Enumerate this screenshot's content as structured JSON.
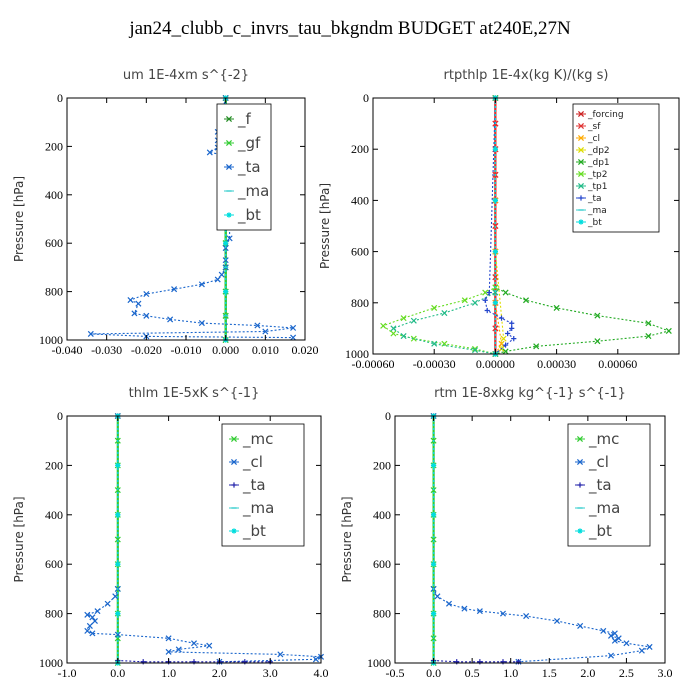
{
  "figure": {
    "title": "jan24_clubb_c_invrs_tau_bkgndm  BUDGET at240E,27N"
  },
  "chart_data": [
    {
      "type": "line",
      "title": "um  1E-4xm s^{-2}",
      "ylabel": "Pressure [hPa]",
      "xlim": [
        -0.04,
        0.02
      ],
      "ylim": [
        1000,
        0
      ],
      "xticks": [
        -0.04,
        -0.03,
        -0.02,
        -0.01,
        0.0,
        0.01,
        0.02
      ],
      "xtick_labels": [
        "-0.040",
        "-0.030",
        "-0.020",
        "-0.010",
        "0.000",
        "0.010",
        "0.020"
      ],
      "yticks": [
        0,
        200,
        400,
        600,
        800,
        1000
      ],
      "ytick_labels": [
        "0",
        "200",
        "400",
        "600",
        "800",
        "1000"
      ],
      "legend": {
        "placement": "top-right",
        "size": "big",
        "entries": [
          "_f",
          "_gf",
          "_ta",
          "_ma",
          "_bt"
        ]
      },
      "series": [
        {
          "name": "_f",
          "color": "#228B22",
          "marker": "x",
          "x": [
            0.0,
            0.0,
            0.0,
            0.0,
            0.0,
            0.0,
            0.0,
            0.0,
            0.0,
            0.0,
            0.0
          ],
          "y": [
            0,
            100,
            200,
            300,
            400,
            500,
            600,
            700,
            800,
            900,
            1000
          ]
        },
        {
          "name": "_gf",
          "color": "#33cc33",
          "marker": "x",
          "x": [
            0.0,
            0.0,
            0.0,
            0.0,
            0.0,
            0.0,
            0.0,
            0.0,
            0.0,
            0.0,
            0.0
          ],
          "y": [
            0,
            100,
            200,
            300,
            400,
            500,
            600,
            700,
            800,
            900,
            1000
          ]
        },
        {
          "name": "_ta",
          "color": "#1a66cc",
          "marker": "x",
          "x": [
            0.0,
            -0.001,
            -0.001,
            -0.002,
            -0.002,
            -0.001,
            -0.002,
            -0.004,
            0.001,
            0.002,
            -0.001,
            0.001,
            0.0,
            0.001,
            0.0,
            0.0,
            0.001,
            0.001,
            0.0,
            0.0,
            0.0,
            -0.001,
            -0.002,
            -0.006,
            -0.013,
            -0.02,
            -0.024,
            -0.022,
            -0.023,
            -0.02,
            -0.014,
            -0.006,
            0.008,
            0.017,
            0.01,
            -0.034,
            -0.02,
            0.017
          ],
          "y": [
            0,
            60,
            90,
            140,
            175,
            190,
            205,
            225,
            240,
            280,
            300,
            320,
            360,
            400,
            430,
            470,
            520,
            580,
            620,
            670,
            700,
            730,
            750,
            770,
            790,
            810,
            835,
            850,
            890,
            900,
            915,
            930,
            940,
            950,
            965,
            975,
            985,
            990
          ]
        },
        {
          "name": "_ma",
          "color": "#33cccc",
          "marker": "dash",
          "x": [
            0.0,
            0.0,
            0.0,
            0.0,
            0.0,
            0.0,
            0.0,
            0.0,
            0.0,
            0.0,
            0.0
          ],
          "y": [
            0,
            100,
            200,
            300,
            400,
            500,
            600,
            700,
            800,
            900,
            1000
          ]
        },
        {
          "name": "_bt",
          "color": "#00dddd",
          "marker": "star",
          "x": [
            0.0,
            0.0,
            0.0,
            0.0,
            0.0,
            0.0
          ],
          "y": [
            0,
            200,
            400,
            600,
            800,
            1000
          ]
        }
      ]
    },
    {
      "type": "line",
      "title": "rtpthlp  1E-4x(kg K)/(kg s)",
      "ylabel": "Pressure [hPa]",
      "xlim": [
        -0.0006,
        0.0009
      ],
      "ylim": [
        1000,
        0
      ],
      "xticks": [
        -0.0006,
        -0.0003,
        0.0,
        0.0003,
        0.0006
      ],
      "xtick_labels": [
        "-0.00060",
        "-0.00030",
        "0.00000",
        "0.00030",
        "0.00060"
      ],
      "yticks": [
        0,
        200,
        400,
        600,
        800,
        1000
      ],
      "ytick_labels": [
        "0",
        "200",
        "400",
        "600",
        "800",
        "1000"
      ],
      "legend": {
        "placement": "top-right",
        "size": "small",
        "entries": [
          "_forcing",
          "_sf",
          "_cl",
          "_dp2",
          "_dp1",
          "_tp2",
          "_tp1",
          "_ta",
          "_ma",
          "_bt"
        ]
      },
      "series": [
        {
          "name": "_forcing",
          "color": "#cc2222",
          "marker": "x",
          "x": [
            0.0,
            0.0,
            0.0,
            0.0,
            0.0,
            0.0,
            0.0,
            0.0,
            0.0,
            0.0,
            0.0
          ],
          "y": [
            0,
            100,
            200,
            300,
            400,
            500,
            600,
            700,
            800,
            900,
            1000
          ]
        },
        {
          "name": "_sf",
          "color": "#e03333",
          "marker": "x",
          "x": [
            0.0,
            0.0,
            0.0,
            0.0,
            0.0,
            0.0,
            0.0,
            0.0,
            0.0,
            0.0,
            0.0
          ],
          "y": [
            0,
            100,
            200,
            300,
            400,
            500,
            600,
            700,
            800,
            900,
            1000
          ]
        },
        {
          "name": "_cl",
          "color": "#ffaa00",
          "marker": "x",
          "x": [
            0.0,
            0.0,
            0.0,
            3e-05,
            0.0
          ],
          "y": [
            0,
            400,
            800,
            960,
            1000
          ]
        },
        {
          "name": "_dp2",
          "color": "#dddd00",
          "marker": "x",
          "x": [
            0.0,
            0.0,
            4e-05,
            3e-05,
            0.0
          ],
          "y": [
            0,
            600,
            940,
            980,
            1000
          ]
        },
        {
          "name": "_dp1",
          "color": "#22aa22",
          "marker": "x",
          "x": [
            0.0,
            0.0,
            5e-05,
            0.00015,
            0.0003,
            0.0005,
            0.00075,
            0.00085,
            0.00075,
            0.0005,
            0.0002,
            5e-05,
            0.0
          ],
          "y": [
            0,
            740,
            760,
            790,
            820,
            850,
            880,
            910,
            930,
            950,
            970,
            990,
            1000
          ]
        },
        {
          "name": "_tp2",
          "color": "#66dd22",
          "marker": "x",
          "x": [
            0.0,
            0.0,
            -5e-05,
            -0.00015,
            -0.0003,
            -0.00045,
            -0.00055,
            -0.0005,
            -0.0004,
            -0.00025,
            -0.0001,
            0.0
          ],
          "y": [
            0,
            740,
            760,
            790,
            820,
            860,
            890,
            920,
            940,
            960,
            980,
            1000
          ]
        },
        {
          "name": "_tp1",
          "color": "#22bb88",
          "marker": "x",
          "x": [
            0.0,
            0.0,
            -0.0001,
            -0.00025,
            -0.0004,
            -0.0005,
            -0.00045,
            -0.0003,
            -0.0001,
            0.0
          ],
          "y": [
            0,
            760,
            800,
            840,
            870,
            900,
            930,
            960,
            985,
            1000
          ]
        },
        {
          "name": "_ta",
          "color": "#2244cc",
          "marker": "plus",
          "x": [
            0.0,
            -3e-05,
            -5e-05,
            -4e-05,
            3e-05,
            8e-05,
            8e-05,
            6e-05,
            9e-05,
            5e-05,
            0.0
          ],
          "y": [
            0,
            760,
            790,
            830,
            860,
            880,
            900,
            920,
            940,
            965,
            1000
          ]
        },
        {
          "name": "_ma",
          "color": "#33cccc",
          "marker": "dash",
          "x": [
            0.0,
            0.0,
            0.0,
            0.0,
            0.0,
            0.0
          ],
          "y": [
            0,
            200,
            400,
            600,
            800,
            1000
          ]
        },
        {
          "name": "_bt",
          "color": "#00dddd",
          "marker": "star",
          "x": [
            0.0,
            0.0,
            0.0,
            0.0,
            0.0,
            0.0
          ],
          "y": [
            0,
            200,
            400,
            600,
            800,
            1000
          ]
        }
      ]
    },
    {
      "type": "line",
      "title": "thlm  1E-5xK s^{-1}",
      "ylabel": "Pressure [hPa]",
      "xlim": [
        -1.0,
        4.0
      ],
      "ylim": [
        1000,
        0
      ],
      "xticks": [
        -1.0,
        0.0,
        1.0,
        2.0,
        3.0,
        4.0
      ],
      "xtick_labels": [
        "-1.0",
        "0.0",
        "1.0",
        "2.0",
        "3.0",
        "4.0"
      ],
      "yticks": [
        0,
        200,
        400,
        600,
        800,
        1000
      ],
      "ytick_labels": [
        "0",
        "200",
        "400",
        "600",
        "800",
        "1000"
      ],
      "legend": {
        "placement": "top-right",
        "size": "big",
        "entries": [
          "_mc",
          "_cl",
          "_ta",
          "_ma",
          "_bt"
        ]
      },
      "series": [
        {
          "name": "_mc",
          "color": "#33cc33",
          "marker": "x",
          "x": [
            0.0,
            0.0,
            0.0,
            0.0,
            0.0,
            0.0,
            0.0,
            0.0,
            0.0,
            0.0,
            0.0
          ],
          "y": [
            0,
            100,
            200,
            300,
            400,
            500,
            600,
            700,
            800,
            900,
            1000
          ]
        },
        {
          "name": "_cl",
          "color": "#1a66cc",
          "marker": "x",
          "x": [
            0.0,
            0.0,
            -0.05,
            -0.2,
            -0.4,
            -0.6,
            -0.5,
            -0.45,
            -0.55,
            -0.6,
            -0.5,
            0.0,
            1.0,
            1.5,
            1.8,
            1.2,
            1.0,
            3.2,
            4.0,
            3.9,
            2.0
          ],
          "y": [
            0,
            700,
            730,
            760,
            790,
            805,
            815,
            830,
            850,
            870,
            880,
            885,
            900,
            920,
            930,
            945,
            955,
            965,
            975,
            985,
            995
          ]
        },
        {
          "name": "_ta",
          "color": "#2222aa",
          "marker": "plus",
          "x": [
            0.0,
            0.0,
            0.5,
            1.0,
            1.5,
            2.0,
            2.5,
            3.0
          ],
          "y": [
            0,
            990,
            995,
            995,
            995,
            995,
            995,
            995
          ]
        },
        {
          "name": "_ma",
          "color": "#33cccc",
          "marker": "dash",
          "x": [
            0.0,
            0.0,
            0.0,
            0.0,
            0.0,
            0.0
          ],
          "y": [
            0,
            200,
            400,
            600,
            800,
            1000
          ]
        },
        {
          "name": "_bt",
          "color": "#00dddd",
          "marker": "star",
          "x": [
            0.0,
            0.0,
            0.0,
            0.0,
            0.0,
            0.0
          ],
          "y": [
            0,
            200,
            400,
            600,
            800,
            1000
          ]
        }
      ]
    },
    {
      "type": "line",
      "title": "rtm  1E-8xkg kg^{-1} s^{-1}",
      "ylabel": "Pressure [hPa]",
      "xlim": [
        -0.5,
        3.0
      ],
      "ylim": [
        1000,
        0
      ],
      "xticks": [
        -0.5,
        0.0,
        0.5,
        1.0,
        1.5,
        2.0,
        2.5,
        3.0
      ],
      "xtick_labels": [
        "-0.5",
        "0.0",
        "0.5",
        "1.0",
        "1.5",
        "2.0",
        "2.5",
        "3.0"
      ],
      "yticks": [
        0,
        200,
        400,
        600,
        800,
        1000
      ],
      "ytick_labels": [
        "0",
        "200",
        "400",
        "600",
        "800",
        "1000"
      ],
      "legend": {
        "placement": "top-right",
        "size": "big",
        "entries": [
          "_mc",
          "_cl",
          "_ta",
          "_ma",
          "_bt"
        ]
      },
      "series": [
        {
          "name": "_mc",
          "color": "#33cc33",
          "marker": "x",
          "x": [
            0.0,
            0.0,
            0.0,
            0.0,
            0.0,
            0.0,
            0.0,
            0.0,
            0.0,
            0.0,
            0.0
          ],
          "y": [
            0,
            100,
            200,
            300,
            400,
            500,
            600,
            700,
            800,
            900,
            1000
          ]
        },
        {
          "name": "_cl",
          "color": "#1a66cc",
          "marker": "x",
          "x": [
            0.0,
            0.0,
            0.05,
            0.2,
            0.4,
            0.6,
            0.9,
            1.2,
            1.6,
            1.9,
            2.2,
            2.35,
            2.3,
            2.4,
            2.35,
            2.5,
            2.8,
            2.7,
            2.3,
            1.1
          ],
          "y": [
            0,
            700,
            730,
            760,
            780,
            790,
            800,
            810,
            830,
            850,
            870,
            880,
            890,
            900,
            910,
            920,
            935,
            950,
            970,
            995
          ]
        },
        {
          "name": "_ta",
          "color": "#2222aa",
          "marker": "plus",
          "x": [
            0.0,
            0.0,
            0.3,
            0.6,
            0.9,
            1.1
          ],
          "y": [
            0,
            990,
            995,
            995,
            995,
            995
          ]
        },
        {
          "name": "_ma",
          "color": "#33cccc",
          "marker": "dash",
          "x": [
            0.0,
            0.0,
            0.0,
            0.0,
            0.0,
            0.0
          ],
          "y": [
            0,
            200,
            400,
            600,
            800,
            1000
          ]
        },
        {
          "name": "_bt",
          "color": "#00dddd",
          "marker": "star",
          "x": [
            0.0,
            0.0,
            0.0,
            0.0,
            0.0,
            0.0
          ],
          "y": [
            0,
            200,
            400,
            600,
            800,
            1000
          ]
        }
      ]
    }
  ]
}
